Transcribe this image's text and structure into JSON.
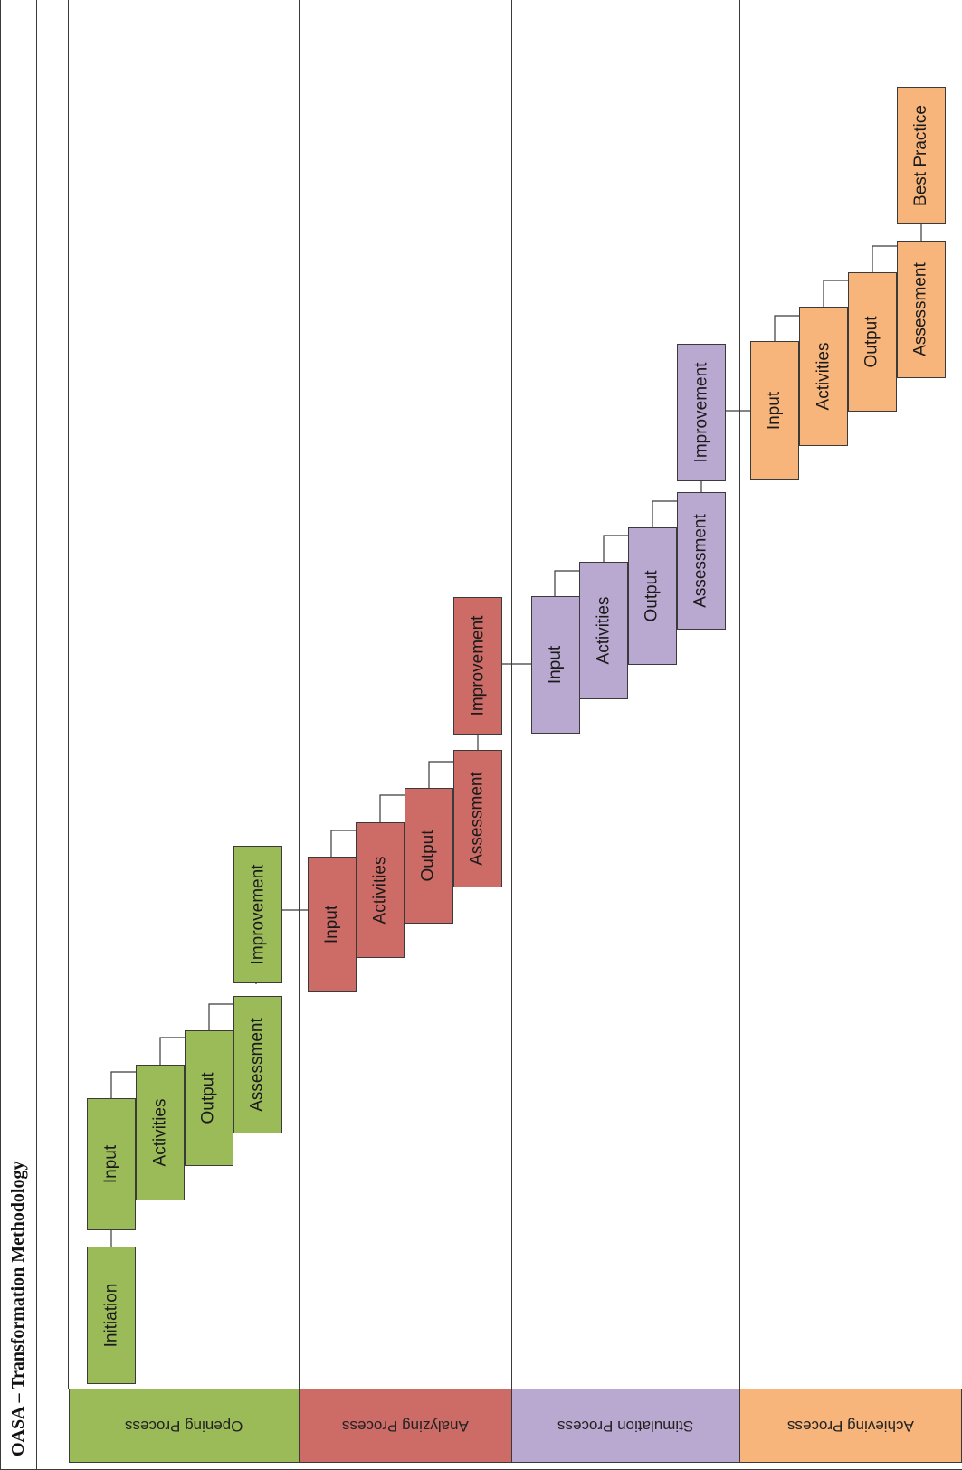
{
  "title": "OASA – Transformation Methodology",
  "lanes": [
    {
      "label": "Opening Process",
      "color": "#9bbb59"
    },
    {
      "label": "Analyzing Process",
      "color": "#cd6b66"
    },
    {
      "label": "Stimulation Process",
      "color": "#b9a8cf"
    },
    {
      "label": "Achieving Process",
      "color": "#f7b57b"
    }
  ],
  "opening": {
    "initiation": "Initiation",
    "input": "Input",
    "activities": "Activities",
    "output": "Output",
    "assessment": "Assessment",
    "improvement": "Improvement"
  },
  "analyzing": {
    "input": "Input",
    "activities": "Activities",
    "output": "Output",
    "assessment": "Assessment",
    "improvement": "Improvement"
  },
  "stimulation": {
    "input": "Input",
    "activities": "Activities",
    "output": "Output",
    "assessment": "Assessment",
    "improvement": "Improvement"
  },
  "achieving": {
    "input": "Input",
    "activities": "Activities",
    "output": "Output",
    "assessment": "Assessment",
    "best_practice": "Best Practice"
  }
}
